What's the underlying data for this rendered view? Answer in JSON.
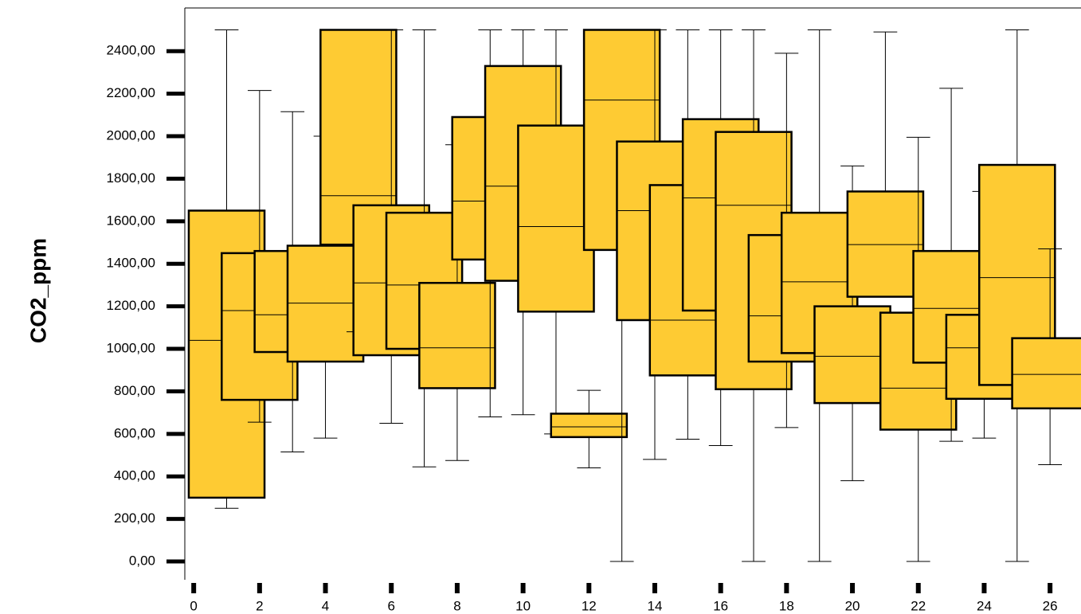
{
  "chart_data": {
    "type": "box",
    "y_label": "CO2_ppm",
    "x": [
      1,
      2,
      3,
      4,
      5,
      6,
      7,
      8,
      9,
      10,
      11,
      12,
      13,
      14,
      15,
      16,
      17,
      18,
      19,
      20,
      21,
      22,
      23,
      24,
      25,
      26
    ],
    "low": [
      250,
      655,
      515,
      580,
      1080,
      650,
      445,
      475,
      680,
      690,
      600,
      440,
      0,
      480,
      575,
      545,
      0,
      630,
      0,
      380,
      1245,
      0,
      565,
      580,
      0,
      455
    ],
    "q1": [
      300,
      760,
      985,
      940,
      1490,
      970,
      1000,
      815,
      1420,
      1320,
      1175,
      585,
      1465,
      1135,
      875,
      1180,
      810,
      940,
      980,
      745,
      1245,
      620,
      935,
      765,
      830,
      720
    ],
    "median": [
      1040,
      1180,
      1160,
      1215,
      1720,
      1310,
      1300,
      1005,
      1695,
      1765,
      1575,
      633,
      2170,
      1650,
      1135,
      1710,
      1675,
      1155,
      1315,
      965,
      1490,
      815,
      1190,
      1005,
      1335,
      880
    ],
    "q3": [
      1650,
      1450,
      1460,
      1485,
      2500,
      1675,
      1640,
      1310,
      2090,
      2330,
      2050,
      695,
      2500,
      1975,
      1770,
      2080,
      2020,
      1535,
      1640,
      1200,
      1740,
      1170,
      1460,
      1160,
      1865,
      1050
    ],
    "high": [
      2500,
      2215,
      2115,
      2000,
      2500,
      2500,
      2500,
      1960,
      2500,
      2500,
      2500,
      805,
      2500,
      2500,
      2500,
      2500,
      2500,
      2390,
      2500,
      1860,
      2490,
      1995,
      2225,
      1740,
      2500,
      1470
    ],
    "color": "#fecb33",
    "xlim": [
      -0.27,
      26.94
    ],
    "xticks": [
      0,
      2,
      4,
      6,
      8,
      10,
      12,
      14,
      16,
      18,
      20,
      22,
      24,
      26
    ],
    "ylim": [
      -86,
      2603
    ],
    "yticks": [
      {
        "value": 0,
        "label": "0,00"
      },
      {
        "value": 200,
        "label": "200,00"
      },
      {
        "value": 400,
        "label": "400,00"
      },
      {
        "value": 600,
        "label": "600,00"
      },
      {
        "value": 800,
        "label": "800,00"
      },
      {
        "value": 1000,
        "label": "1000,00"
      },
      {
        "value": 1200,
        "label": "1200,00"
      },
      {
        "value": 1400,
        "label": "1400,00"
      },
      {
        "value": 1600,
        "label": "1600,00"
      },
      {
        "value": 1800,
        "label": "1800,00"
      },
      {
        "value": 2000,
        "label": "2000,00"
      },
      {
        "value": 2200,
        "label": "2200,00"
      },
      {
        "value": 2400,
        "label": "2400,00"
      }
    ]
  }
}
